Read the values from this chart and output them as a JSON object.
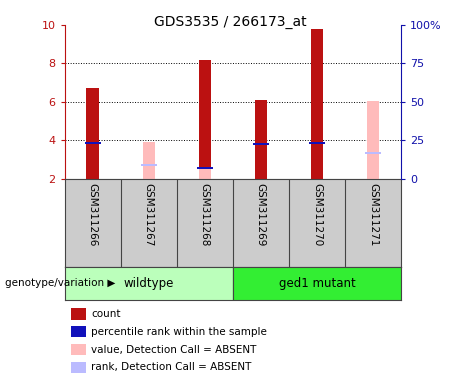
{
  "title": "GDS3535 / 266173_at",
  "samples": [
    "GSM311266",
    "GSM311267",
    "GSM311268",
    "GSM311269",
    "GSM311270",
    "GSM311271"
  ],
  "group_labels": [
    "wildtype",
    "ged1 mutant"
  ],
  "ylim_left": [
    2,
    10
  ],
  "ylim_right": [
    0,
    100
  ],
  "yticks_left": [
    2,
    4,
    6,
    8,
    10
  ],
  "yticks_right": [
    0,
    25,
    50,
    75,
    100
  ],
  "ytick_labels_right": [
    "0",
    "25",
    "50",
    "75",
    "100%"
  ],
  "red_bars": [
    6.7,
    null,
    8.2,
    6.1,
    9.8,
    null
  ],
  "blue_marks": [
    3.85,
    null,
    2.55,
    3.8,
    3.85,
    null
  ],
  "pink_bars": [
    null,
    3.9,
    2.55,
    null,
    null,
    6.05
  ],
  "lavender_marks": [
    null,
    2.7,
    null,
    null,
    null,
    3.35
  ],
  "bar_width": 0.22,
  "red_color": "#bb1111",
  "blue_color": "#1111bb",
  "pink_color": "#ffbbbb",
  "lavender_color": "#bbbbff",
  "bg_plot": "#ffffff",
  "bg_labels": "#cccccc",
  "bg_wildtype": "#bbffbb",
  "bg_mutant": "#33ee33",
  "legend_items": [
    {
      "color": "#bb1111",
      "label": "count"
    },
    {
      "color": "#1111bb",
      "label": "percentile rank within the sample"
    },
    {
      "color": "#ffbbbb",
      "label": "value, Detection Call = ABSENT"
    },
    {
      "color": "#bbbbff",
      "label": "rank, Detection Call = ABSENT"
    }
  ],
  "genotype_label": "genotype/variation"
}
